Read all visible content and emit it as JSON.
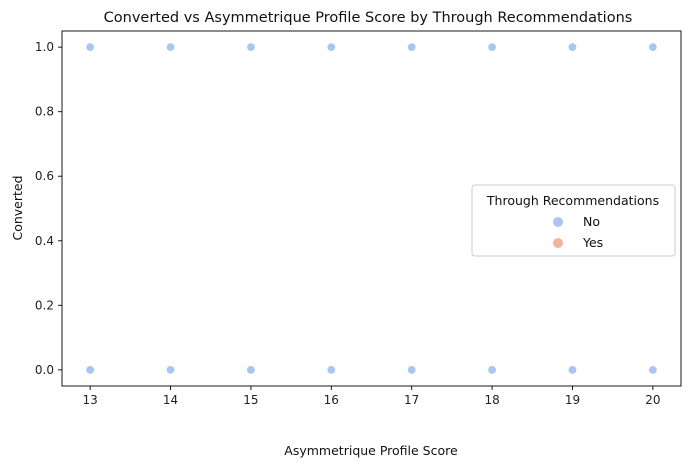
{
  "chart_data": {
    "type": "scatter",
    "title": "Converted vs Asymmetrique Profile Score by Through Recommendations",
    "xlabel": "Asymmetrique Profile Score",
    "ylabel": "Converted",
    "xlim": [
      12.65,
      20.35
    ],
    "ylim": [
      -0.05,
      1.05
    ],
    "xticks": [
      "13",
      "14",
      "15",
      "16",
      "17",
      "18",
      "19",
      "20"
    ],
    "yticks": [
      "0.0",
      "0.2",
      "0.4",
      "0.6",
      "0.8",
      "1.0"
    ],
    "grid": false,
    "legend": {
      "title": "Through Recommendations",
      "placement": "center-right",
      "entries": [
        {
          "label": "No",
          "color": "#a7c5f5"
        },
        {
          "label": "Yes",
          "color": "#f2b49c"
        }
      ]
    },
    "series": [
      {
        "name": "No",
        "color": "#a7c5f5",
        "points": [
          {
            "x": 13,
            "y": 1
          },
          {
            "x": 14,
            "y": 1
          },
          {
            "x": 15,
            "y": 1
          },
          {
            "x": 16,
            "y": 1
          },
          {
            "x": 17,
            "y": 1
          },
          {
            "x": 18,
            "y": 1
          },
          {
            "x": 19,
            "y": 1
          },
          {
            "x": 20,
            "y": 1
          },
          {
            "x": 13,
            "y": 0
          },
          {
            "x": 14,
            "y": 0
          },
          {
            "x": 15,
            "y": 0
          },
          {
            "x": 16,
            "y": 0
          },
          {
            "x": 17,
            "y": 0
          },
          {
            "x": 18,
            "y": 0
          },
          {
            "x": 19,
            "y": 0
          },
          {
            "x": 20,
            "y": 0
          }
        ]
      },
      {
        "name": "Yes",
        "color": "#f2b49c",
        "points": []
      }
    ]
  }
}
